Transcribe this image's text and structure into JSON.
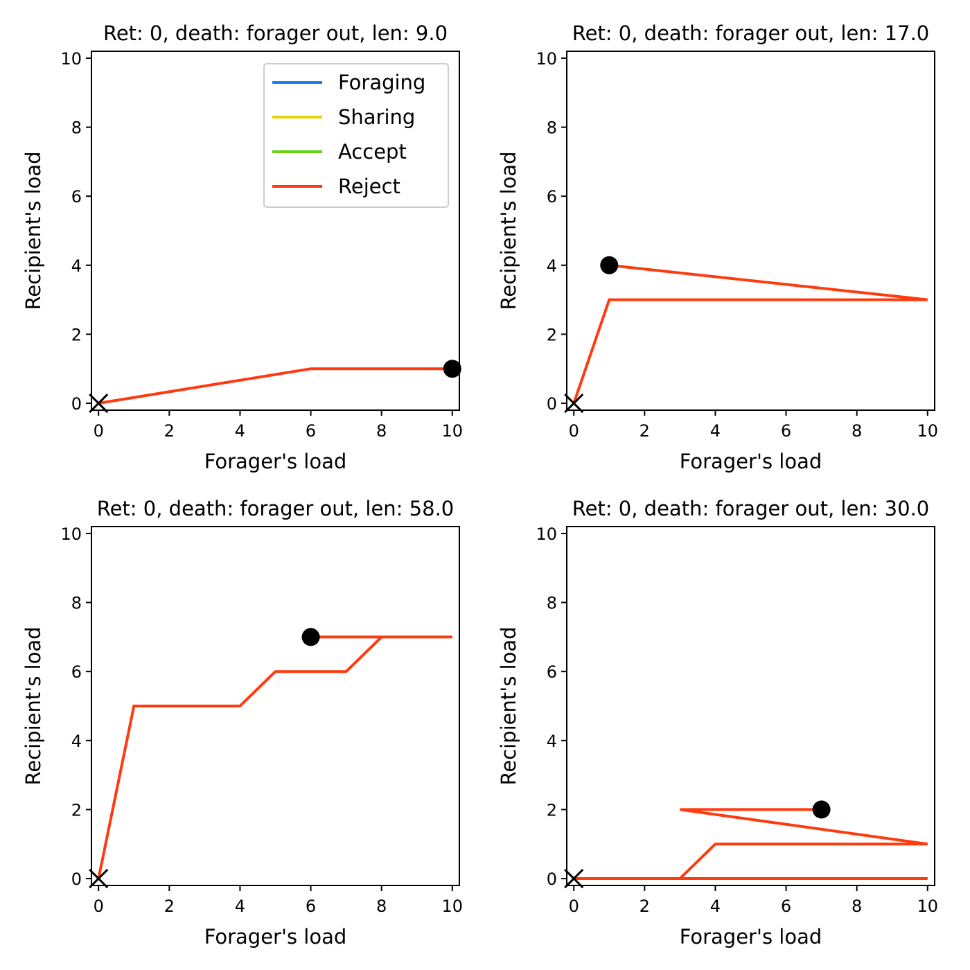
{
  "colors": {
    "foraging": "#1a7ff0",
    "sharing": "#e8d200",
    "accept": "#63d40f",
    "reject": "#ff3a0f",
    "marker": "#000000"
  },
  "legend": {
    "placement": "upper-right of first panel",
    "entries": [
      {
        "label": "Foraging",
        "color_key": "foraging"
      },
      {
        "label": "Sharing",
        "color_key": "sharing"
      },
      {
        "label": "Accept",
        "color_key": "accept"
      },
      {
        "label": "Reject",
        "color_key": "reject"
      }
    ]
  },
  "chart_data": [
    {
      "type": "line",
      "title": "Ret: 0, death: forager out, len: 9.0",
      "xlabel": "Forager's load",
      "ylabel": "Recipient's load",
      "xlim": [
        -0.2,
        10.2
      ],
      "ylim": [
        -0.2,
        10.2
      ],
      "xticks": [
        0,
        2,
        4,
        6,
        8,
        10
      ],
      "yticks": [
        0,
        2,
        4,
        6,
        8,
        10
      ],
      "grid": false,
      "start_marker": {
        "shape": "circle",
        "x": 10,
        "y": 1
      },
      "end_marker": {
        "shape": "x",
        "x": 0,
        "y": 0
      },
      "segments": [
        {
          "series": "Reject",
          "points": [
            [
              10,
              1
            ],
            [
              6,
              1
            ],
            [
              0,
              0
            ]
          ]
        }
      ]
    },
    {
      "type": "line",
      "title": "Ret: 0, death: forager out, len: 17.0",
      "xlabel": "Forager's load",
      "ylabel": "Recipient's load",
      "xlim": [
        -0.2,
        10.2
      ],
      "ylim": [
        -0.2,
        10.2
      ],
      "xticks": [
        0,
        2,
        4,
        6,
        8,
        10
      ],
      "yticks": [
        0,
        2,
        4,
        6,
        8,
        10
      ],
      "grid": false,
      "start_marker": {
        "shape": "circle",
        "x": 1,
        "y": 4
      },
      "end_marker": {
        "shape": "x",
        "x": 0,
        "y": 0
      },
      "segments": [
        {
          "series": "Reject",
          "points": [
            [
              1,
              4
            ],
            [
              10,
              3
            ],
            [
              1,
              3
            ],
            [
              0,
              0
            ]
          ]
        }
      ]
    },
    {
      "type": "line",
      "title": "Ret: 0, death: forager out, len: 58.0",
      "xlabel": "Forager's load",
      "ylabel": "Recipient's load",
      "xlim": [
        -0.2,
        10.2
      ],
      "ylim": [
        -0.2,
        10.2
      ],
      "xticks": [
        0,
        2,
        4,
        6,
        8,
        10
      ],
      "yticks": [
        0,
        2,
        4,
        6,
        8,
        10
      ],
      "grid": false,
      "start_marker": {
        "shape": "circle",
        "x": 6,
        "y": 7
      },
      "end_marker": {
        "shape": "x",
        "x": 0,
        "y": 0
      },
      "segments": [
        {
          "series": "Reject",
          "points": [
            [
              6,
              7
            ],
            [
              10,
              7
            ],
            [
              8,
              7
            ],
            [
              7,
              6
            ],
            [
              5,
              6
            ],
            [
              4,
              5
            ],
            [
              1,
              5
            ],
            [
              0,
              0
            ]
          ]
        }
      ]
    },
    {
      "type": "line",
      "title": "Ret: 0, death: forager out, len: 30.0",
      "xlabel": "Forager's load",
      "ylabel": "Recipient's load",
      "xlim": [
        -0.2,
        10.2
      ],
      "ylim": [
        -0.2,
        10.2
      ],
      "xticks": [
        0,
        2,
        4,
        6,
        8,
        10
      ],
      "yticks": [
        0,
        2,
        4,
        6,
        8,
        10
      ],
      "grid": false,
      "start_marker": {
        "shape": "circle",
        "x": 7,
        "y": 2
      },
      "end_marker": {
        "shape": "x",
        "x": 0,
        "y": 0
      },
      "segments": [
        {
          "series": "Reject",
          "points": [
            [
              7,
              2
            ],
            [
              3,
              2
            ],
            [
              10,
              1
            ],
            [
              4,
              1
            ],
            [
              3,
              0
            ],
            [
              10,
              0
            ],
            [
              0,
              0
            ]
          ]
        }
      ]
    }
  ]
}
